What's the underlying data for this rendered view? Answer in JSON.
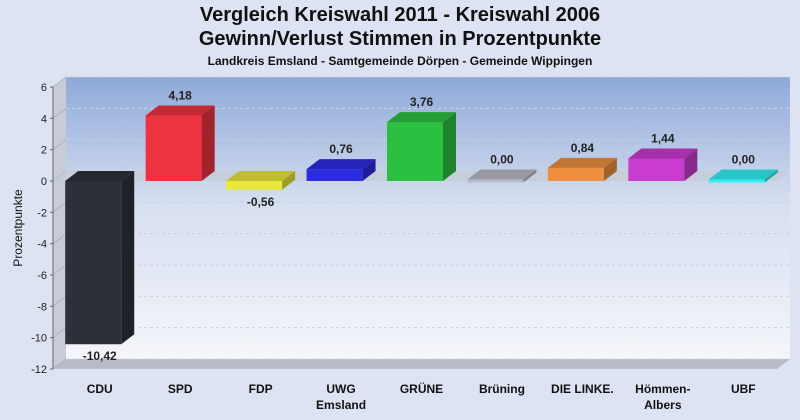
{
  "chart_data": {
    "type": "bar",
    "title": "Vergleich Kreiswahl 2011 - Kreiswahl 2006",
    "subtitle": "Gewinn/Verlust Stimmen in Prozentpunkte",
    "caption": "Landkreis Emsland - Samtgemeinde Dörpen - Gemeinde Wippingen",
    "ylabel": "Prozentpunkte",
    "xlabel": "",
    "ylim": [
      -12,
      6
    ],
    "yticks": [
      6,
      4,
      2,
      0,
      -2,
      -4,
      -6,
      -8,
      -10,
      -12
    ],
    "grid": true,
    "categories": [
      {
        "line1": "CDU",
        "line2": ""
      },
      {
        "line1": "SPD",
        "line2": ""
      },
      {
        "line1": "FDP",
        "line2": ""
      },
      {
        "line1": "UWG",
        "line2": "Emsland"
      },
      {
        "line1": "GRÜNE",
        "line2": ""
      },
      {
        "line1": "Brüning",
        "line2": ""
      },
      {
        "line1": "DIE LINKE.",
        "line2": ""
      },
      {
        "line1": "Hömmen-",
        "line2": "Albers"
      },
      {
        "line1": "UBF",
        "line2": ""
      }
    ],
    "values": [
      -10.42,
      4.18,
      -0.56,
      0.76,
      3.76,
      0.0,
      0.84,
      1.44,
      0.0
    ],
    "value_labels": [
      "-10,42",
      "4,18",
      "-0,56",
      "0,76",
      "3,76",
      "0,00",
      "0,84",
      "1,44",
      "0,00"
    ],
    "colors": [
      "#2c3038",
      "#ee3340",
      "#e8e83a",
      "#2c2ce0",
      "#2cc040",
      "#b8bcc8",
      "#ee9040",
      "#c83cd0",
      "#30f0f4"
    ]
  }
}
